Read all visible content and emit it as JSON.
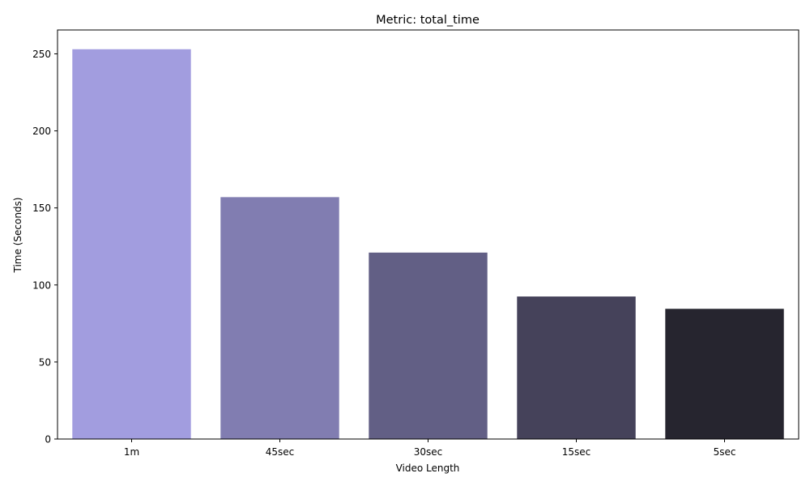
{
  "chart_data": {
    "type": "bar",
    "title": "Metric: total_time",
    "xlabel": "Video Length",
    "ylabel": "Time (Seconds)",
    "categories": [
      "1m",
      "45sec",
      "30sec",
      "15sec",
      "5sec"
    ],
    "values": [
      253,
      157,
      121,
      92.5,
      84.5
    ],
    "colors": [
      "#a29ddf",
      "#817db1",
      "#625f85",
      "#45425a",
      "#26252f"
    ],
    "ylim": [
      0,
      265.5
    ],
    "yticks": [
      0,
      50,
      100,
      150,
      200,
      250
    ],
    "grid": false,
    "legend": "none"
  }
}
